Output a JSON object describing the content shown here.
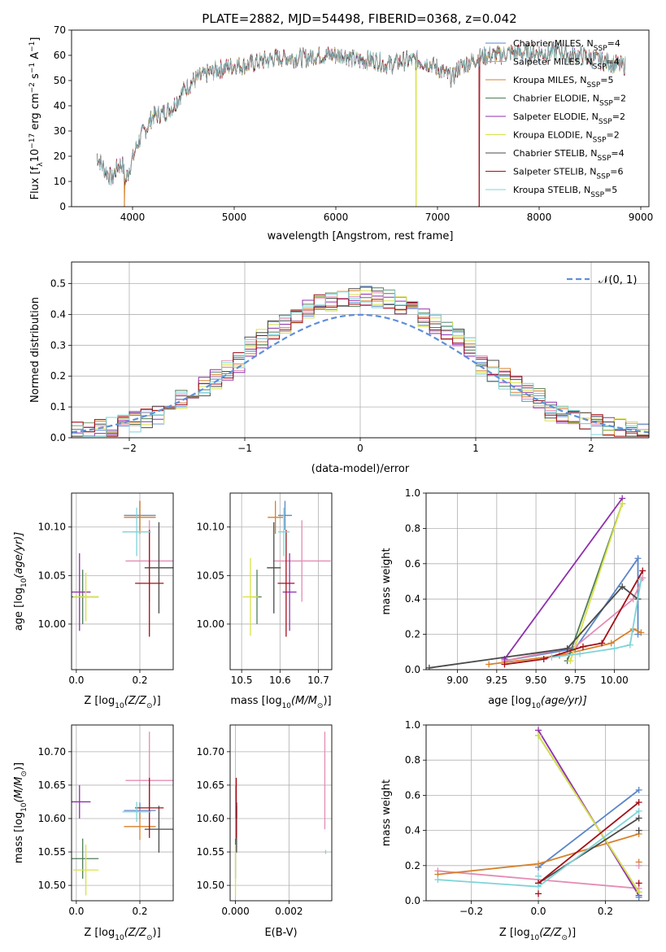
{
  "figure": {
    "title": "PLATE=2882, MJD=54498, FIBERID=0368, z=0.042"
  },
  "colors": {
    "Chabrier MILES": "#5b87c9",
    "Salpeter MILES": "#e48cb4",
    "Kroupa MILES": "#d6812b",
    "Chabrier ELODIE": "#4f7e58",
    "Salpeter ELODIE": "#8f2fb0",
    "Kroupa ELODIE": "#d8e24a",
    "Chabrier STELIB": "#4a4a4a",
    "Salpeter STELIB": "#a31018",
    "Kroupa STELIB": "#7fd3d8",
    "normal": "#5f8fd8"
  },
  "chart_data": [
    {
      "id": "spectrum",
      "type": "line",
      "xlabel": "wavelength [Angstrom, rest frame]",
      "ylabel": "Flux [f",
      "ylabel_rich": [
        "Flux [f",
        "λ",
        "10",
        "−17",
        " erg cm",
        "−2",
        " s",
        "−1",
        " A",
        "−1",
        "]"
      ],
      "xlim": [
        3400,
        9080
      ],
      "ylim": [
        0,
        70
      ],
      "xticks": [
        4000,
        5000,
        6000,
        7000,
        8000,
        9000
      ],
      "yticks": [
        0,
        10,
        20,
        30,
        40,
        50,
        60,
        70
      ],
      "grid": false,
      "legend_position": "right",
      "legend": [
        {
          "label": "Chabrier MILES, N",
          "sub": "SSP",
          "suffix": "=4",
          "color": "Chabrier MILES"
        },
        {
          "label": "Salpeter MILES, N",
          "sub": "SSP",
          "suffix": "=4",
          "color": "Salpeter MILES"
        },
        {
          "label": "Kroupa MILES, N",
          "sub": "SSP",
          "suffix": "=5",
          "color": "Kroupa MILES"
        },
        {
          "label": "Chabrier ELODIE, N",
          "sub": "SSP",
          "suffix": "=2",
          "color": "Chabrier ELODIE"
        },
        {
          "label": "Salpeter ELODIE, N",
          "sub": "SSP",
          "suffix": "=2",
          "color": "Salpeter ELODIE"
        },
        {
          "label": "Kroupa ELODIE, N",
          "sub": "SSP",
          "suffix": "=2",
          "color": "Kroupa ELODIE"
        },
        {
          "label": "Chabrier STELIB, N",
          "sub": "SSP",
          "suffix": "=4",
          "color": "Chabrier STELIB"
        },
        {
          "label": "Salpeter STELIB, N",
          "sub": "SSP",
          "suffix": "=6",
          "color": "Salpeter STELIB"
        },
        {
          "label": "Kroupa STELIB, N",
          "sub": "SSP",
          "suffix": "=5",
          "color": "Kroupa STELIB"
        }
      ],
      "continuum": [
        [
          3650,
          20
        ],
        [
          3720,
          15
        ],
        [
          3800,
          11
        ],
        [
          3850,
          16
        ],
        [
          3900,
          17
        ],
        [
          3930,
          10
        ],
        [
          3960,
          14
        ],
        [
          4000,
          19
        ],
        [
          4050,
          25
        ],
        [
          4100,
          29
        ],
        [
          4150,
          32
        ],
        [
          4200,
          36
        ],
        [
          4300,
          37
        ],
        [
          4400,
          40
        ],
        [
          4500,
          46
        ],
        [
          4600,
          50
        ],
        [
          4700,
          52
        ],
        [
          4800,
          54
        ],
        [
          4900,
          55
        ],
        [
          5000,
          56
        ],
        [
          5100,
          56
        ],
        [
          5200,
          57
        ],
        [
          5300,
          58
        ],
        [
          5400,
          59
        ],
        [
          5500,
          59
        ],
        [
          5600,
          59
        ],
        [
          5700,
          59
        ],
        [
          5800,
          60
        ],
        [
          5900,
          60
        ],
        [
          6000,
          60
        ],
        [
          6100,
          60
        ],
        [
          6200,
          58
        ],
        [
          6300,
          58
        ],
        [
          6400,
          58
        ],
        [
          6500,
          56
        ],
        [
          6600,
          57
        ],
        [
          6700,
          58
        ],
        [
          6800,
          58
        ],
        [
          6900,
          57
        ],
        [
          7000,
          55
        ],
        [
          7100,
          52
        ],
        [
          7150,
          51
        ],
        [
          7200,
          55
        ],
        [
          7300,
          57
        ],
        [
          7400,
          59
        ],
        [
          7500,
          60
        ],
        [
          7600,
          60
        ],
        [
          7700,
          61
        ],
        [
          7800,
          61
        ],
        [
          7900,
          61
        ],
        [
          8000,
          61
        ],
        [
          8100,
          61
        ],
        [
          8200,
          62
        ],
        [
          8300,
          60
        ],
        [
          8400,
          60
        ],
        [
          8500,
          59
        ],
        [
          8600,
          58
        ],
        [
          8700,
          57
        ],
        [
          8800,
          56
        ],
        [
          8850,
          56
        ]
      ],
      "dips": [
        {
          "x": 3920,
          "series": "Kroupa MILES"
        },
        {
          "x": 6790,
          "series": "Kroupa ELODIE"
        },
        {
          "x": 7410,
          "series": "Salpeter STELIB"
        }
      ]
    },
    {
      "id": "residuals",
      "type": "histogram",
      "xlabel": "(data-model)/error",
      "ylabel": "Normed distribution",
      "xlim": [
        -2.5,
        2.5
      ],
      "ylim": [
        0,
        0.57
      ],
      "xticks": [
        -2,
        -1,
        0,
        1,
        2
      ],
      "yticks": [
        0.0,
        0.1,
        0.2,
        0.3,
        0.4,
        0.5
      ],
      "grid": true,
      "legend_position": "top-right",
      "bin_width": 0.1,
      "bin_start": -2.5,
      "reference_label": "𝒩(0, 1)"
    },
    {
      "id": "age-vs-z",
      "type": "scatter",
      "xlabel": "Z [log",
      "xlabel_rich": [
        "Z [log",
        "10",
        "(Z/Z",
        "⊙",
        ")]"
      ],
      "ylabel_rich": [
        "age  [log",
        "10",
        "(age/yr)]"
      ],
      "xlim": [
        -0.015,
        0.305
      ],
      "ylim": [
        9.953,
        10.135
      ],
      "xticks": [
        0.0,
        0.2
      ],
      "yticks": [
        10.0,
        10.05,
        10.1
      ],
      "grid": true,
      "points": [
        {
          "s": "Chabrier MILES",
          "x": 0.2,
          "y": 10.112,
          "xe": 0.05,
          "ye": 0.015
        },
        {
          "s": "Salpeter MILES",
          "x": 0.23,
          "y": 10.065,
          "xe": 0.075,
          "ye": 0.042
        },
        {
          "s": "Kroupa MILES",
          "x": 0.2,
          "y": 10.11,
          "xe": 0.05,
          "ye": 0.017
        },
        {
          "s": "Chabrier ELODIE",
          "x": 0.02,
          "y": 10.028,
          "xe": 0.05,
          "ye": 0.028
        },
        {
          "s": "Salpeter ELODIE",
          "x": 0.01,
          "y": 10.033,
          "xe": 0.035,
          "ye": 0.04
        },
        {
          "s": "Kroupa ELODIE",
          "x": 0.03,
          "y": 10.028,
          "xe": 0.04,
          "ye": 0.025
        },
        {
          "s": "Chabrier STELIB",
          "x": 0.26,
          "y": 10.058,
          "xe": 0.045,
          "ye": 0.047
        },
        {
          "s": "Salpeter STELIB",
          "x": 0.23,
          "y": 10.042,
          "xe": 0.045,
          "ye": 0.055
        },
        {
          "s": "Kroupa STELIB",
          "x": 0.19,
          "y": 10.095,
          "xe": 0.045,
          "ye": 0.025
        }
      ]
    },
    {
      "id": "age-vs-mass",
      "type": "scatter",
      "xlabel": "mass [log",
      "xlabel_rich": [
        "mass [log",
        "10",
        "(M/M",
        "⊙",
        ")]"
      ],
      "ylabel_rich": [],
      "xlim": [
        10.47,
        10.735
      ],
      "ylim": [
        9.953,
        10.135
      ],
      "xticks": [
        10.5,
        10.6,
        10.7
      ],
      "yticks": [
        10.0,
        10.05,
        10.1
      ],
      "grid": true,
      "points": [
        {
          "s": "Chabrier MILES",
          "x": 10.613,
          "y": 10.112,
          "xe": 0.018,
          "ye": 0.015
        },
        {
          "s": "Salpeter MILES",
          "x": 10.657,
          "y": 10.065,
          "xe": 0.075,
          "ye": 0.042
        },
        {
          "s": "Kroupa MILES",
          "x": 10.588,
          "y": 10.11,
          "xe": 0.02,
          "ye": 0.017
        },
        {
          "s": "Chabrier ELODIE",
          "x": 10.54,
          "y": 10.028,
          "xe": 0.012,
          "ye": 0.028
        },
        {
          "s": "Salpeter ELODIE",
          "x": 10.625,
          "y": 10.033,
          "xe": 0.018,
          "ye": 0.04
        },
        {
          "s": "Kroupa ELODIE",
          "x": 10.523,
          "y": 10.028,
          "xe": 0.02,
          "ye": 0.04
        },
        {
          "s": "Chabrier STELIB",
          "x": 10.584,
          "y": 10.058,
          "xe": 0.018,
          "ye": 0.047
        },
        {
          "s": "Salpeter STELIB",
          "x": 10.616,
          "y": 10.042,
          "xe": 0.022,
          "ye": 0.055
        },
        {
          "s": "Kroupa STELIB",
          "x": 10.61,
          "y": 10.095,
          "xe": 0.015,
          "ye": 0.025
        }
      ]
    },
    {
      "id": "weight-vs-age",
      "type": "line",
      "xlabel_rich": [
        "age  [log",
        "10",
        "(age/yr)]"
      ],
      "ylabel": "mass weight",
      "xlim": [
        8.8,
        10.22
      ],
      "ylim": [
        0,
        1.0
      ],
      "xticks": [
        9.0,
        9.25,
        9.5,
        9.75,
        10.0
      ],
      "yticks": [
        0.0,
        0.2,
        0.4,
        0.6,
        0.8,
        1.0
      ],
      "grid": true,
      "series": [
        {
          "s": "Chabrier MILES",
          "x": [
            9.3,
            9.75,
            10.15,
            10.15
          ],
          "y": [
            0.05,
            0.12,
            0.63,
            0.2
          ]
        },
        {
          "s": "Salpeter MILES",
          "x": [
            9.3,
            9.75,
            10.12,
            10.18
          ],
          "y": [
            0.05,
            0.13,
            0.4,
            0.52
          ]
        },
        {
          "s": "Kroupa MILES",
          "x": [
            9.2,
            9.65,
            9.98,
            10.12,
            10.17
          ],
          "y": [
            0.03,
            0.08,
            0.15,
            0.23,
            0.21
          ]
        },
        {
          "s": "Chabrier ELODIE",
          "x": [
            9.7,
            10.05
          ],
          "y": [
            0.05,
            0.94
          ]
        },
        {
          "s": "Salpeter ELODIE",
          "x": [
            9.3,
            10.05
          ],
          "y": [
            0.06,
            0.97
          ]
        },
        {
          "s": "Kroupa ELODIE",
          "x": [
            9.72,
            10.05
          ],
          "y": [
            0.05,
            0.94
          ]
        },
        {
          "s": "Chabrier STELIB",
          "x": [
            8.82,
            9.7,
            10.05,
            10.15
          ],
          "y": [
            0.01,
            0.12,
            0.47,
            0.4
          ]
        },
        {
          "s": "Salpeter STELIB",
          "x": [
            9.3,
            9.55,
            9.8,
            9.92,
            10.18
          ],
          "y": [
            0.03,
            0.06,
            0.13,
            0.15,
            0.56
          ]
        },
        {
          "s": "Kroupa STELIB",
          "x": [
            9.6,
            9.78,
            10.0,
            10.1,
            10.17
          ],
          "y": [
            0.07,
            0.09,
            0.12,
            0.14,
            0.51
          ]
        }
      ]
    },
    {
      "id": "mass-vs-z",
      "type": "scatter",
      "xlabel_rich": [
        "Z [log",
        "10",
        "(Z/Z",
        "⊙",
        ")]"
      ],
      "ylabel_rich": [
        "mass [log",
        "10",
        "(M/M",
        "⊙",
        ")]"
      ],
      "xlim": [
        -0.015,
        0.305
      ],
      "ylim": [
        10.477,
        10.74
      ],
      "xticks": [
        0.0,
        0.2
      ],
      "yticks": [
        10.5,
        10.55,
        10.6,
        10.65,
        10.7
      ],
      "grid": true,
      "points": [
        {
          "s": "Chabrier MILES",
          "x": 0.2,
          "y": 10.612,
          "xe": 0.05,
          "ye": 0.012
        },
        {
          "s": "Salpeter MILES",
          "x": 0.23,
          "y": 10.657,
          "xe": 0.075,
          "ye": 0.073
        },
        {
          "s": "Kroupa MILES",
          "x": 0.2,
          "y": 10.588,
          "xe": 0.05,
          "ye": 0.02
        },
        {
          "s": "Chabrier ELODIE",
          "x": 0.02,
          "y": 10.54,
          "xe": 0.05,
          "ye": 0.03
        },
        {
          "s": "Salpeter ELODIE",
          "x": 0.01,
          "y": 10.625,
          "xe": 0.035,
          "ye": 0.025
        },
        {
          "s": "Kroupa ELODIE",
          "x": 0.03,
          "y": 10.523,
          "xe": 0.04,
          "ye": 0.038
        },
        {
          "s": "Chabrier STELIB",
          "x": 0.26,
          "y": 10.584,
          "xe": 0.045,
          "ye": 0.035
        },
        {
          "s": "Salpeter STELIB",
          "x": 0.23,
          "y": 10.616,
          "xe": 0.045,
          "ye": 0.045
        },
        {
          "s": "Kroupa STELIB",
          "x": 0.19,
          "y": 10.61,
          "xe": 0.045,
          "ye": 0.015
        }
      ]
    },
    {
      "id": "mass-vs-ebv",
      "type": "scatter",
      "xlabel": "E(B-V)",
      "ylabel_rich": [],
      "xlim": [
        -0.0002,
        0.0036
      ],
      "ylim": [
        10.477,
        10.74
      ],
      "xticks": [
        0.0,
        0.002
      ],
      "yticks": [
        10.5,
        10.55,
        10.6,
        10.65,
        10.7
      ],
      "grid": true,
      "points": [
        {
          "s": "Chabrier MILES",
          "x": 5e-05,
          "y": 10.612,
          "xe": 0,
          "ye": 0.012
        },
        {
          "s": "Salpeter MILES",
          "x": 0.00334,
          "y": 10.657,
          "xe": 0,
          "ye": 0.073
        },
        {
          "s": "Kroupa MILES",
          "x": 3e-05,
          "y": 10.588,
          "xe": 0,
          "ye": 0.02
        },
        {
          "s": "Chabrier ELODIE",
          "x": 0.0,
          "y": 10.54,
          "xe": 0,
          "ye": 0.03
        },
        {
          "s": "Salpeter ELODIE",
          "x": 2e-05,
          "y": 10.625,
          "xe": 0,
          "ye": 0.025
        },
        {
          "s": "Kroupa ELODIE",
          "x": 0.0,
          "y": 10.523,
          "xe": 0,
          "ye": 0.038
        },
        {
          "s": "Chabrier STELIB",
          "x": 4e-05,
          "y": 10.584,
          "xe": 0,
          "ye": 0.035
        },
        {
          "s": "Salpeter STELIB",
          "x": 3e-05,
          "y": 10.616,
          "xe": 0,
          "ye": 0.045
        },
        {
          "s": "Kroupa STELIB",
          "x": 0.00337,
          "y": 10.55,
          "xe": 0,
          "ye": 0.003
        }
      ]
    },
    {
      "id": "weight-vs-z",
      "type": "line",
      "xlabel_rich": [
        "Z [log",
        "10",
        "(Z/Z",
        "⊙",
        ")]"
      ],
      "ylabel": "mass weight",
      "xlim": [
        -0.335,
        0.33
      ],
      "ylim": [
        0,
        1.0
      ],
      "xticks": [
        -0.2,
        0.0,
        0.2
      ],
      "yticks": [
        0.0,
        0.2,
        0.4,
        0.6,
        0.8,
        1.0
      ],
      "grid": true,
      "series": [
        {
          "s": "Chabrier MILES",
          "x": [
            0.0,
            0.3
          ],
          "y": [
            0.19,
            0.63
          ]
        },
        {
          "s": "Salpeter MILES",
          "x": [
            -0.3,
            0.3
          ],
          "y": [
            0.17,
            0.07
          ]
        },
        {
          "s": "Kroupa MILES",
          "x": [
            -0.3,
            0.0,
            0.3
          ],
          "y": [
            0.15,
            0.21,
            0.38
          ]
        },
        {
          "s": "Chabrier ELODIE",
          "x": [
            0.0,
            0.3
          ],
          "y": [
            0.94,
            0.05
          ]
        },
        {
          "s": "Salpeter ELODIE",
          "x": [
            0.0,
            0.3
          ],
          "y": [
            0.97,
            0.03
          ]
        },
        {
          "s": "Kroupa ELODIE",
          "x": [
            0.0,
            0.3
          ],
          "y": [
            0.94,
            0.05
          ]
        },
        {
          "s": "Chabrier STELIB",
          "x": [
            0.0,
            0.3
          ],
          "y": [
            0.1,
            0.47
          ]
        },
        {
          "s": "Salpeter STELIB",
          "x": [
            0.0,
            0.3
          ],
          "y": [
            0.1,
            0.56
          ]
        },
        {
          "s": "Kroupa STELIB",
          "x": [
            -0.3,
            0.0,
            0.3
          ],
          "y": [
            0.12,
            0.08,
            0.51
          ]
        }
      ],
      "markers": [
        {
          "s": "Kroupa MILES",
          "x": 0.3,
          "y": 0.22
        },
        {
          "s": "Chabrier STELIB",
          "x": 0.3,
          "y": 0.4
        },
        {
          "s": "Salpeter STELIB",
          "x": 0.3,
          "y": 0.1
        },
        {
          "s": "Salpeter STELIB",
          "x": 0.0,
          "y": 0.04
        },
        {
          "s": "Chabrier MILES",
          "x": 0.3,
          "y": 0.02
        },
        {
          "s": "Kroupa STELIB",
          "x": 0.0,
          "y": 0.14
        },
        {
          "s": "Salpeter MILES",
          "x": 0.3,
          "y": 0.2
        }
      ]
    }
  ]
}
